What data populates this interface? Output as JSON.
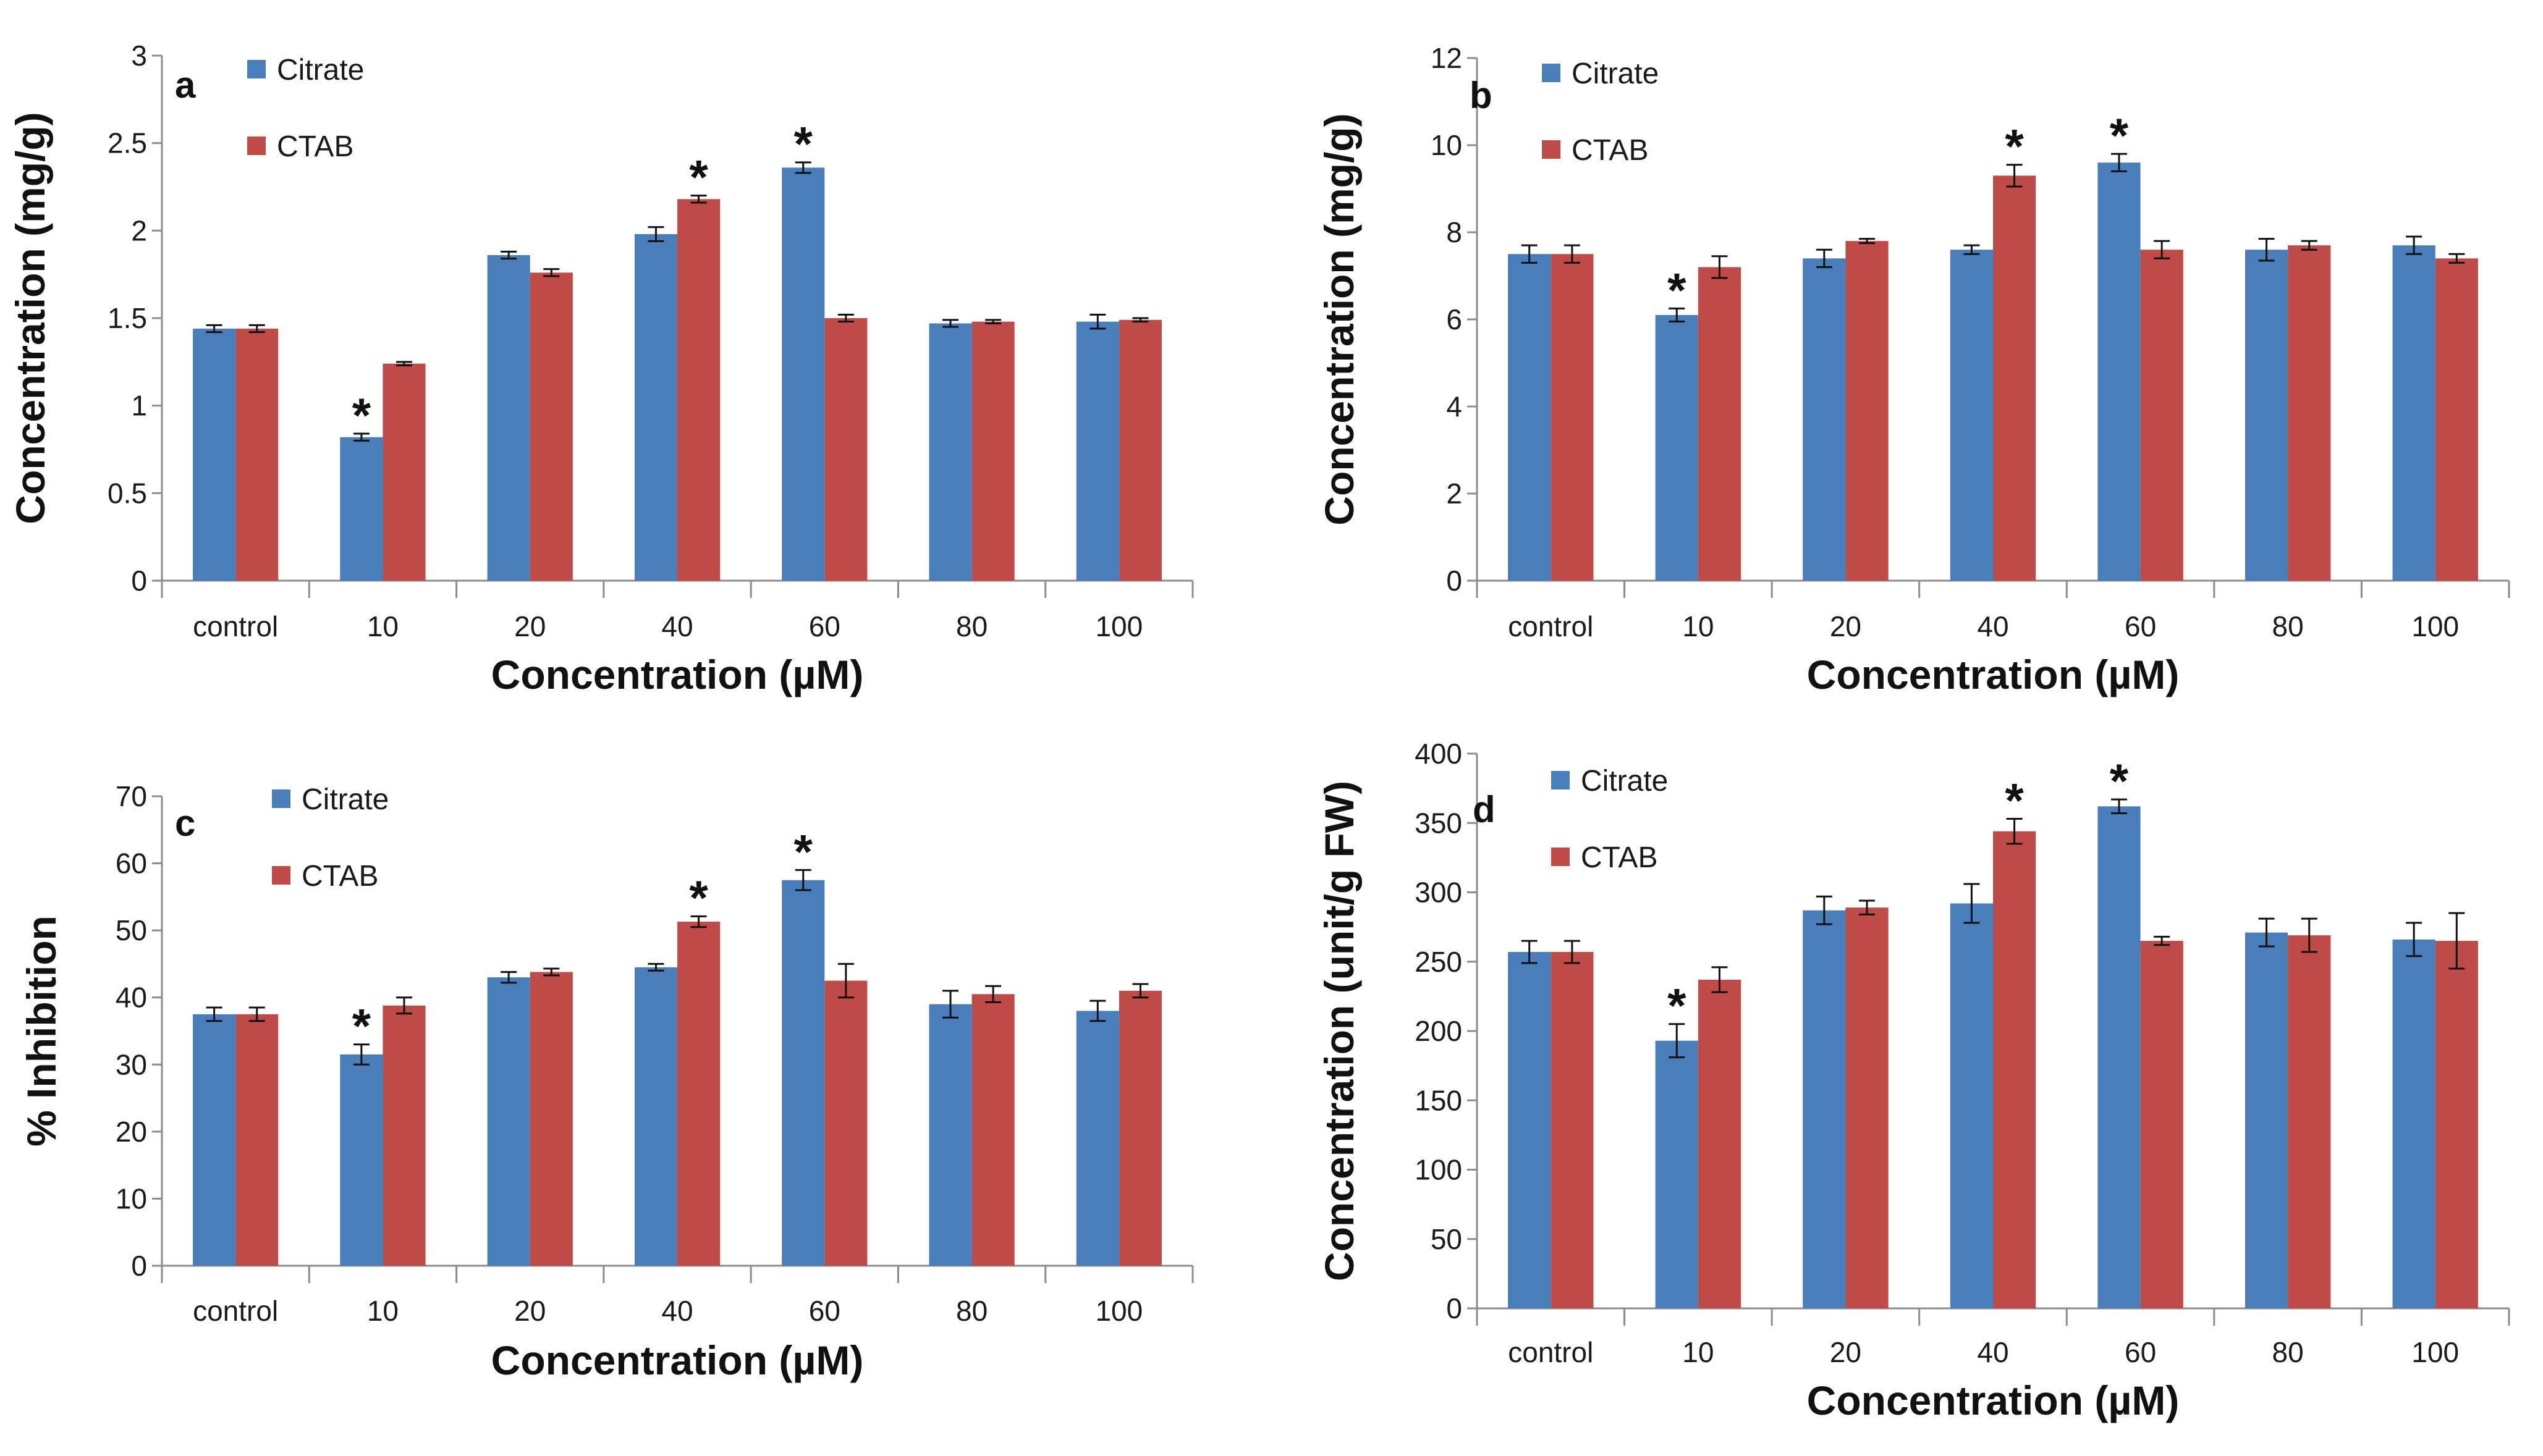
{
  "colors": {
    "citrate": "#4a7ebb",
    "ctab": "#be4b48",
    "axis": "#8c8c8c",
    "error": "#111111"
  },
  "chart_data": [
    {
      "type": "bar",
      "panel": "a",
      "categories": [
        "control",
        "10",
        "20",
        "40",
        "60",
        "80",
        "100"
      ],
      "xlabel": "Concentration (µM)",
      "ylabel": "Concentration (mg/g)",
      "ylim": [
        0,
        3
      ],
      "yticks": [
        "0",
        "0.5",
        "1",
        "1.5",
        "2",
        "2.5",
        "3"
      ],
      "legend_position": "top-left",
      "series": [
        {
          "name": "Citrate",
          "values": [
            1.44,
            0.82,
            1.86,
            1.98,
            2.36,
            1.47,
            1.48
          ],
          "errors": [
            0.02,
            0.02,
            0.02,
            0.04,
            0.03,
            0.02,
            0.04
          ],
          "significant": [
            false,
            true,
            false,
            false,
            true,
            false,
            false
          ]
        },
        {
          "name": "CTAB",
          "values": [
            1.44,
            1.24,
            1.76,
            2.18,
            1.5,
            1.48,
            1.49
          ],
          "errors": [
            0.02,
            0.01,
            0.02,
            0.02,
            0.02,
            0.01,
            0.01
          ],
          "significant": [
            false,
            false,
            false,
            true,
            false,
            false,
            false
          ]
        }
      ]
    },
    {
      "type": "bar",
      "panel": "b",
      "categories": [
        "control",
        "10",
        "20",
        "40",
        "60",
        "80",
        "100"
      ],
      "xlabel": "Concentration (µM)",
      "ylabel": "Concentration (mg/g)",
      "ylim": [
        0,
        12
      ],
      "yticks": [
        "0",
        "2",
        "4",
        "6",
        "8",
        "10",
        "12"
      ],
      "legend_position": "top-left",
      "series": [
        {
          "name": "Citrate",
          "values": [
            7.5,
            6.1,
            7.4,
            7.6,
            9.6,
            7.6,
            7.7
          ],
          "errors": [
            0.2,
            0.15,
            0.2,
            0.1,
            0.2,
            0.25,
            0.2
          ],
          "significant": [
            false,
            true,
            false,
            false,
            true,
            false,
            false
          ]
        },
        {
          "name": "CTAB",
          "values": [
            7.5,
            7.2,
            7.8,
            9.3,
            7.6,
            7.7,
            7.4
          ],
          "errors": [
            0.2,
            0.25,
            0.05,
            0.25,
            0.2,
            0.1,
            0.1
          ],
          "significant": [
            false,
            false,
            false,
            true,
            false,
            false,
            false
          ]
        }
      ]
    },
    {
      "type": "bar",
      "panel": "c",
      "categories": [
        "control",
        "10",
        "20",
        "40",
        "60",
        "80",
        "100"
      ],
      "xlabel": "Concentration (µM)",
      "ylabel": "% Inhibition",
      "ylim": [
        0,
        70
      ],
      "yticks": [
        "0",
        "10",
        "20",
        "30",
        "40",
        "50",
        "60",
        "70"
      ],
      "legend_position": "top-left",
      "series": [
        {
          "name": "Citrate",
          "values": [
            37.5,
            31.5,
            43,
            44.5,
            57.5,
            39,
            38
          ],
          "errors": [
            1,
            1.5,
            0.8,
            0.5,
            1.5,
            2,
            1.5
          ],
          "significant": [
            false,
            true,
            false,
            false,
            true,
            false,
            false
          ]
        },
        {
          "name": "CTAB",
          "values": [
            37.5,
            38.8,
            43.8,
            51.3,
            42.5,
            40.5,
            41
          ],
          "errors": [
            1,
            1.2,
            0.5,
            0.8,
            2.5,
            1.2,
            1
          ],
          "significant": [
            false,
            false,
            false,
            true,
            false,
            false,
            false
          ]
        }
      ]
    },
    {
      "type": "bar",
      "panel": "d",
      "categories": [
        "control",
        "10",
        "20",
        "40",
        "60",
        "80",
        "100"
      ],
      "xlabel": "Concentration (µM)",
      "ylabel": "Concentration (unit/g FW)",
      "ylim": [
        0,
        400
      ],
      "yticks": [
        "0",
        "50",
        "100",
        "150",
        "200",
        "250",
        "300",
        "350",
        "400"
      ],
      "legend_position": "top-left",
      "series": [
        {
          "name": "Citrate",
          "values": [
            257,
            193,
            287,
            292,
            362,
            271,
            266
          ],
          "errors": [
            8,
            12,
            10,
            14,
            5,
            10,
            12
          ],
          "significant": [
            false,
            true,
            false,
            false,
            true,
            false,
            false
          ]
        },
        {
          "name": "CTAB",
          "values": [
            257,
            237,
            289,
            344,
            265,
            269,
            265
          ],
          "errors": [
            8,
            9,
            5,
            9,
            3,
            12,
            20
          ],
          "significant": [
            false,
            false,
            false,
            true,
            false,
            false,
            false
          ]
        }
      ]
    }
  ]
}
